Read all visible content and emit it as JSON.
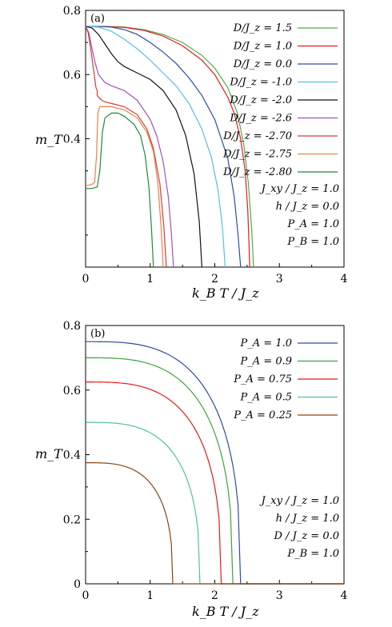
{
  "chart_data": [
    {
      "type": "line",
      "panel_label": "(a)",
      "xlabel": "k_B T / J_z",
      "ylabel": "m_T",
      "xlim": [
        0,
        4
      ],
      "ylim": [
        0,
        0.8
      ],
      "xticks": [
        "0",
        "1",
        "2",
        "3",
        "4"
      ],
      "yticks": [
        "0.4",
        "0.6",
        "0.8"
      ],
      "grid": false,
      "legend_position": "top-right",
      "params": [
        "J_xy / J_z = 1.0",
        "h / J_z = 0.0",
        "P_A = 1.0",
        "P_B = 1.0"
      ],
      "series": [
        {
          "name": "D/J_z = 1.5",
          "color": "#4daf4a",
          "x": [
            0,
            0.3,
            0.6,
            0.9,
            1.2,
            1.5,
            1.8,
            2.0,
            2.2,
            2.35,
            2.45,
            2.52,
            2.57,
            2.59,
            2.6
          ],
          "y": [
            0.75,
            0.75,
            0.748,
            0.74,
            0.725,
            0.7,
            0.66,
            0.62,
            0.56,
            0.48,
            0.38,
            0.26,
            0.12,
            0.04,
            0.0
          ]
        },
        {
          "name": "D/J_z = 1.0",
          "color": "#e41a1c",
          "x": [
            0,
            0.3,
            0.6,
            0.9,
            1.2,
            1.5,
            1.8,
            2.0,
            2.2,
            2.3,
            2.4,
            2.47,
            2.51,
            2.53,
            2.54
          ],
          "y": [
            0.75,
            0.75,
            0.747,
            0.738,
            0.72,
            0.69,
            0.645,
            0.6,
            0.53,
            0.48,
            0.4,
            0.3,
            0.18,
            0.07,
            0.0
          ]
        },
        {
          "name": "D/J_z = 0.0",
          "color": "#2c4da0",
          "x": [
            0,
            0.2,
            0.4,
            0.6,
            0.8,
            1.0,
            1.2,
            1.4,
            1.6,
            1.8,
            2.0,
            2.2,
            2.3,
            2.36,
            2.4
          ],
          "y": [
            0.75,
            0.75,
            0.748,
            0.74,
            0.725,
            0.7,
            0.67,
            0.635,
            0.59,
            0.535,
            0.46,
            0.34,
            0.22,
            0.1,
            0.0
          ]
        },
        {
          "name": "D/J_z = -1.0",
          "color": "#56c1e0",
          "x": [
            0,
            0.2,
            0.4,
            0.6,
            0.8,
            1.0,
            1.2,
            1.4,
            1.6,
            1.8,
            1.95,
            2.05,
            2.12,
            2.16
          ],
          "y": [
            0.75,
            0.748,
            0.735,
            0.71,
            0.68,
            0.645,
            0.605,
            0.565,
            0.51,
            0.43,
            0.34,
            0.24,
            0.12,
            0.0
          ]
        },
        {
          "name": "D/J_z = -2.0",
          "color": "#111111",
          "x": [
            0,
            0.1,
            0.2,
            0.3,
            0.4,
            0.5,
            0.6,
            0.8,
            1.0,
            1.2,
            1.4,
            1.55,
            1.68,
            1.76,
            1.8
          ],
          "y": [
            0.75,
            0.745,
            0.725,
            0.695,
            0.665,
            0.64,
            0.625,
            0.605,
            0.585,
            0.55,
            0.49,
            0.41,
            0.29,
            0.14,
            0.0
          ]
        },
        {
          "name": "D/J_z = -2.6",
          "color": "#a64fc0",
          "x": [
            0,
            0.05,
            0.1,
            0.15,
            0.2,
            0.3,
            0.4,
            0.6,
            0.8,
            1.0,
            1.1,
            1.2,
            1.28,
            1.33,
            1.36
          ],
          "y": [
            0.75,
            0.73,
            0.68,
            0.635,
            0.6,
            0.575,
            0.565,
            0.55,
            0.52,
            0.46,
            0.41,
            0.33,
            0.22,
            0.1,
            0.0
          ]
        },
        {
          "name": "D/J_z = -2.70",
          "color": "#d63b3b",
          "x": [
            0,
            0.04,
            0.08,
            0.12,
            0.16,
            0.18,
            0.18,
            0.2,
            0.25,
            0.3,
            0.4,
            0.6,
            0.8,
            0.95,
            1.05,
            1.15,
            1.21,
            1.25
          ],
          "y": [
            0.75,
            0.73,
            0.68,
            0.62,
            0.56,
            0.55,
            0.535,
            0.53,
            0.52,
            0.515,
            0.51,
            0.5,
            0.475,
            0.43,
            0.37,
            0.26,
            0.13,
            0.0
          ]
        },
        {
          "name": "D/J_z = -2.75",
          "color": "#f08040",
          "x": [
            0,
            0.05,
            0.1,
            0.14,
            0.17,
            0.19,
            0.22,
            0.3,
            0.4,
            0.6,
            0.8,
            0.95,
            1.05,
            1.12,
            1.17,
            1.2
          ],
          "y": [
            0.255,
            0.255,
            0.258,
            0.265,
            0.35,
            0.48,
            0.5,
            0.5,
            0.5,
            0.49,
            0.465,
            0.42,
            0.36,
            0.26,
            0.12,
            0.0
          ]
        },
        {
          "name": "D/J_z = -2.80",
          "color": "#1f8a3a",
          "x": [
            0,
            0.1,
            0.18,
            0.22,
            0.26,
            0.3,
            0.4,
            0.5,
            0.6,
            0.75,
            0.85,
            0.92,
            0.98,
            1.02,
            1.05
          ],
          "y": [
            0.245,
            0.245,
            0.25,
            0.3,
            0.42,
            0.465,
            0.48,
            0.48,
            0.47,
            0.445,
            0.41,
            0.35,
            0.25,
            0.12,
            0.0
          ]
        }
      ]
    },
    {
      "type": "line",
      "panel_label": "(b)",
      "xlabel": "k_B T / J_z",
      "ylabel": "m_T",
      "xlim": [
        0,
        4
      ],
      "ylim": [
        0,
        0.8
      ],
      "xticks": [
        "0",
        "1",
        "2",
        "3",
        "4"
      ],
      "yticks": [
        "0",
        "0.2",
        "0.4",
        "0.6",
        "0.8"
      ],
      "grid": false,
      "legend_position": "top-right",
      "params": [
        "J_xy / J_z = 1.0",
        "h / J_z = 1.0",
        "D / J_z = 0.0",
        "P_B = 1.0"
      ],
      "series": [
        {
          "name": "P_A = 1.0",
          "color": "#2c4da0",
          "m0": 0.75,
          "tc": 2.4
        },
        {
          "name": "P_A = 0.9",
          "color": "#3aa63a",
          "m0": 0.7,
          "tc": 2.28
        },
        {
          "name": "P_A = 0.75",
          "color": "#e41a1c",
          "m0": 0.625,
          "tc": 2.1
        },
        {
          "name": "P_A = 0.5",
          "color": "#4fc2a0",
          "m0": 0.5,
          "tc": 1.77
        },
        {
          "name": "P_A = 0.25",
          "color": "#8b4513",
          "m0": 0.375,
          "tc": 1.35
        }
      ]
    }
  ]
}
